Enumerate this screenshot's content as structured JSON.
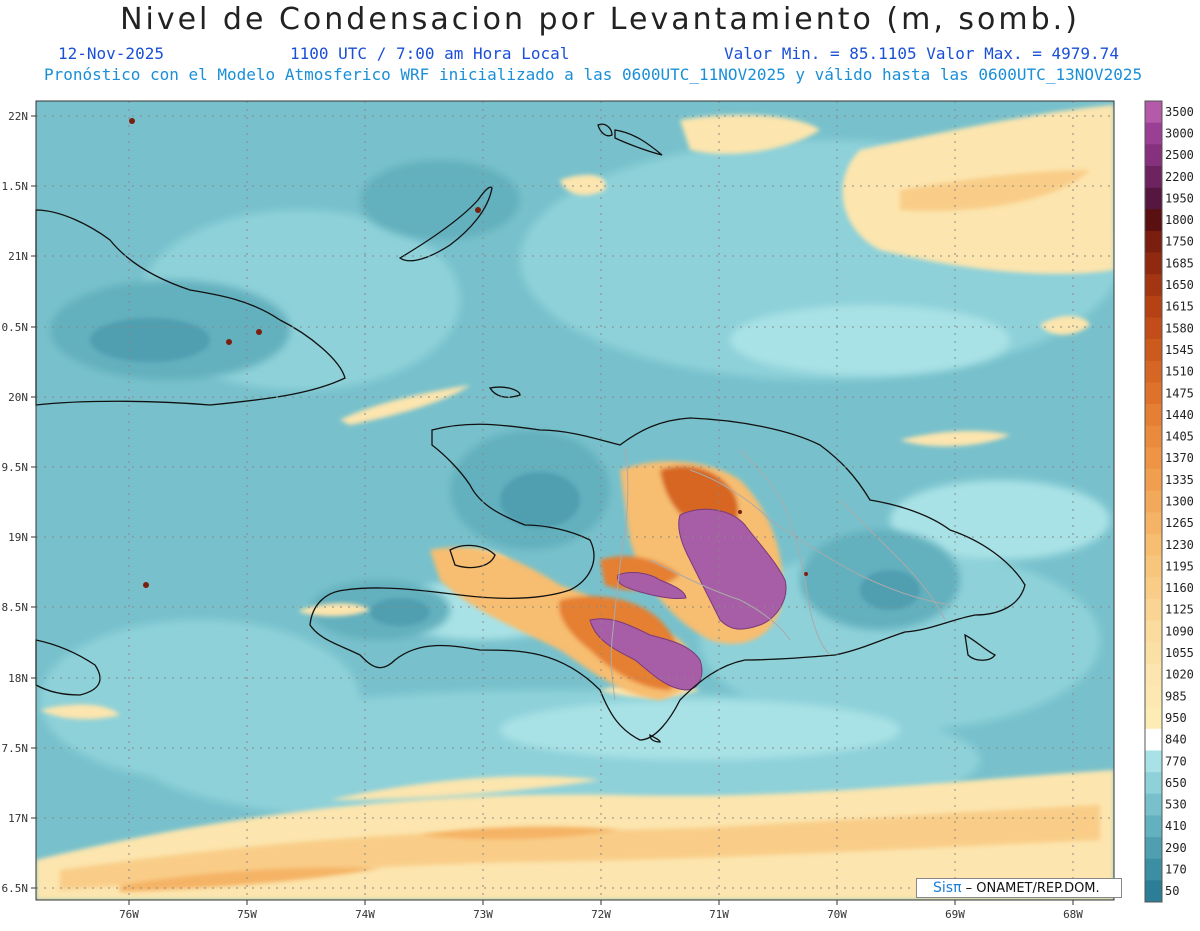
{
  "header": {
    "title": "Nivel de Condensacion por Levantamiento (m, somb.)",
    "date": "12-Nov-2025",
    "time": "1100 UTC / 7:00 am Hora Local",
    "minmax": "Valor Min. = 85.1105  Valor Max. = 4979.74",
    "forecast": "Pronóstico con el Modelo Atmosferico WRF inicializado a las 0600UTC_11NOV2025 y válido hasta las  0600UTC_13NOV2025"
  },
  "lat_labels": [
    "22N",
    "1.5N",
    "21N",
    "0.5N",
    "20N",
    "9.5N",
    "19N",
    "8.5N",
    "18N",
    "7.5N",
    "17N",
    "6.5N"
  ],
  "lon_labels": [
    "76W",
    "75W",
    "74W",
    "73W",
    "72W",
    "71W",
    "70W",
    "69W",
    "68W"
  ],
  "colorbar": {
    "labels": [
      "3500",
      "3000",
      "2500",
      "2200",
      "1950",
      "1800",
      "1750",
      "1685",
      "1650",
      "1615",
      "1580",
      "1545",
      "1510",
      "1475",
      "1440",
      "1405",
      "1370",
      "1335",
      "1300",
      "1265",
      "1230",
      "1195",
      "1160",
      "1125",
      "1090",
      "1055",
      "1020",
      "985",
      "950",
      "840",
      "770",
      "650",
      "530",
      "410",
      "290",
      "170",
      "50"
    ],
    "colors": [
      "#b35aa8",
      "#9a3f94",
      "#86317d",
      "#6e2361",
      "#55163f",
      "#5a1010",
      "#7a1f0f",
      "#8f2a10",
      "#a33512",
      "#b54115",
      "#c24d18",
      "#cd5a1d",
      "#d66624",
      "#de722b",
      "#e57f33",
      "#ea8a3c",
      "#ee9445",
      "#f19f4f",
      "#f3a95a",
      "#f5b365",
      "#f7bd70",
      "#f8c57c",
      "#f9cd88",
      "#fad493",
      "#fbdb9e",
      "#fbe0a6",
      "#fce5ae",
      "#fce8b0",
      "#fdedb4",
      "#ffffff",
      "#a9e2e6",
      "#8ed1d9",
      "#78c1cc",
      "#63b0be",
      "#4f9fb1",
      "#3c8ea3",
      "#2c7d95"
    ]
  },
  "attribution": {
    "logo": "Sisπ",
    "text": "– ONAMET/REP.DOM."
  }
}
